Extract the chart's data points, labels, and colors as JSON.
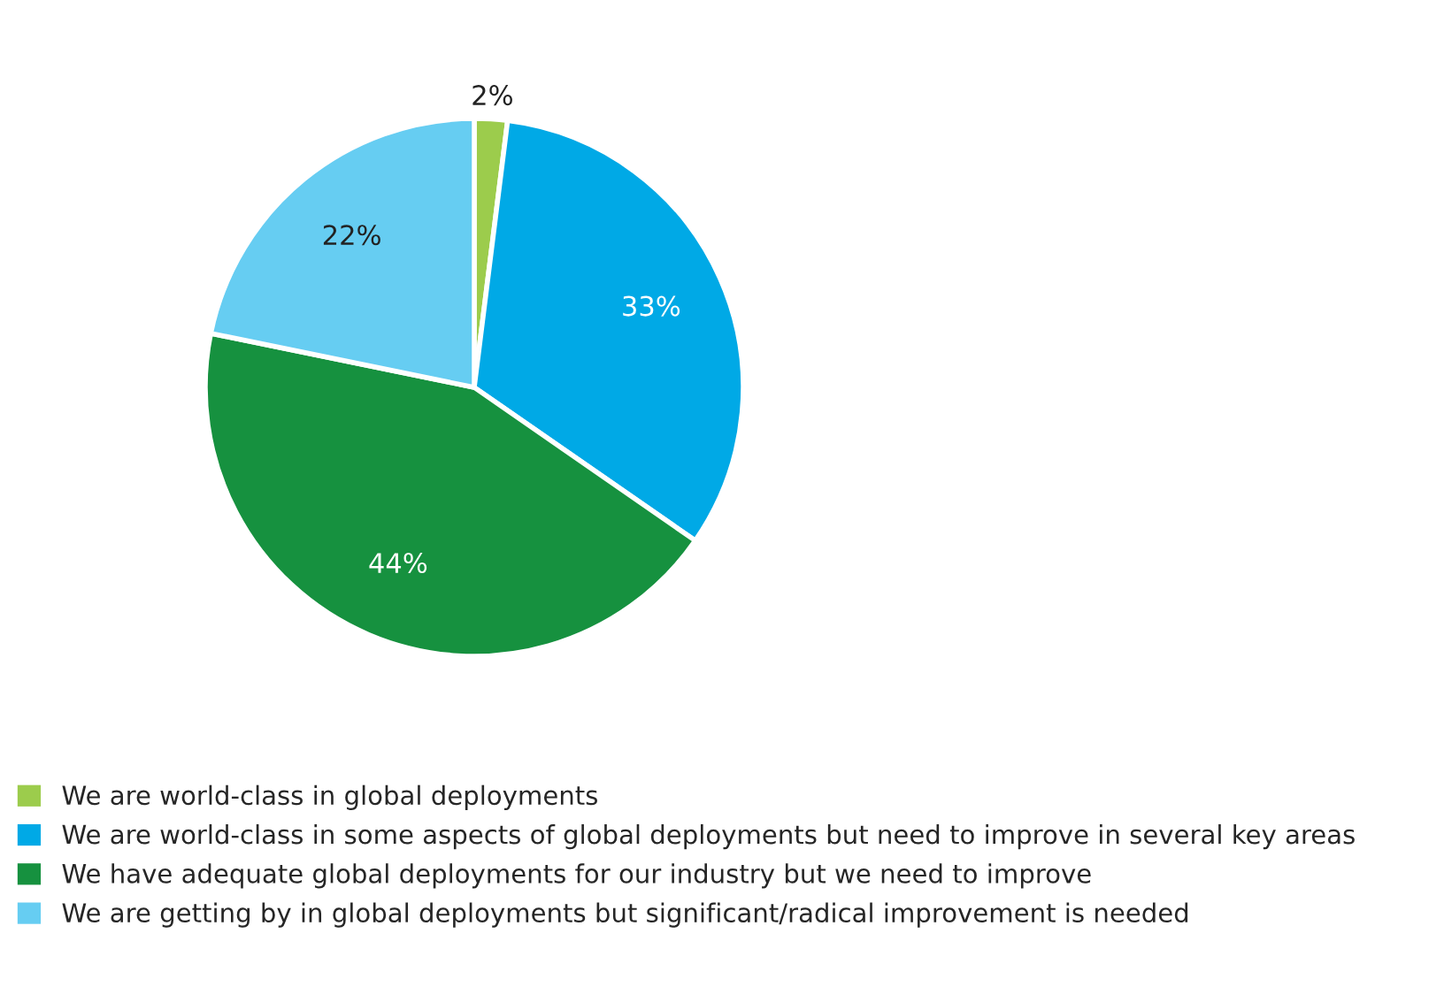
{
  "chart_data": {
    "type": "pie",
    "categories": [
      "We are world-class in global deployments",
      "We are world-class in some aspects of global deployments but need to improve in several key areas",
      "We have adequate global deployments for our industry but we need to improve",
      "We are getting by in global deployments but significant/radical improvement is needed"
    ],
    "values": [
      2,
      33,
      44,
      22
    ],
    "colors": [
      "#9ccc4c",
      "#00a9e6",
      "#16913f",
      "#66cdf2"
    ],
    "value_labels": [
      "2%",
      "33%",
      "44%",
      "22%"
    ],
    "legend": "bottom"
  }
}
